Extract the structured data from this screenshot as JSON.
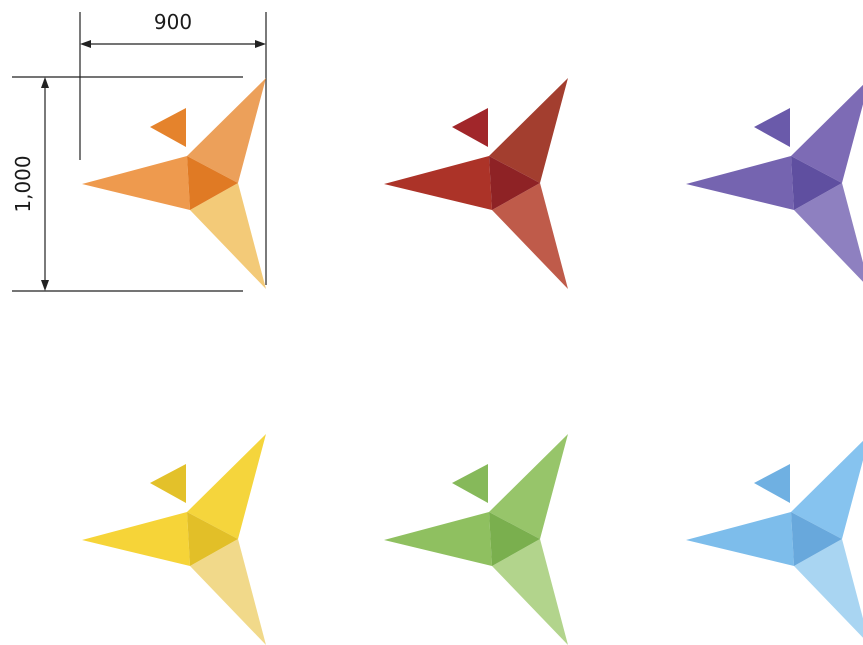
{
  "dimensions": {
    "width_label": "900",
    "height_label": "1,000"
  },
  "logos": [
    {
      "name": "orange",
      "colors": {
        "small": "#E5832C",
        "upper": "#ECA05A",
        "left": "#EE9A4E",
        "lower": "#F3CA78",
        "center": "#E07A24"
      }
    },
    {
      "name": "red",
      "colors": {
        "small": "#A1262A",
        "upper": "#A33E2F",
        "left": "#AC3328",
        "lower": "#BF5B4A",
        "center": "#8E2225"
      }
    },
    {
      "name": "purple",
      "colors": {
        "small": "#6A5AAA",
        "upper": "#7D6BB5",
        "left": "#7564B0",
        "lower": "#8E80C0",
        "center": "#5F4FA0"
      }
    },
    {
      "name": "yellow",
      "colors": {
        "small": "#E3C12A",
        "upper": "#F5D53C",
        "left": "#F6D438",
        "lower": "#F1D98A",
        "center": "#E2BF28"
      }
    },
    {
      "name": "green",
      "colors": {
        "small": "#86B95A",
        "upper": "#97C56A",
        "left": "#8FC060",
        "lower": "#B2D48C",
        "center": "#7AAF4E"
      }
    },
    {
      "name": "blue",
      "colors": {
        "small": "#6FB0E2",
        "upper": "#86C3EF",
        "left": "#7DBDEB",
        "lower": "#A9D5F2",
        "center": "#68A8DC"
      }
    }
  ]
}
